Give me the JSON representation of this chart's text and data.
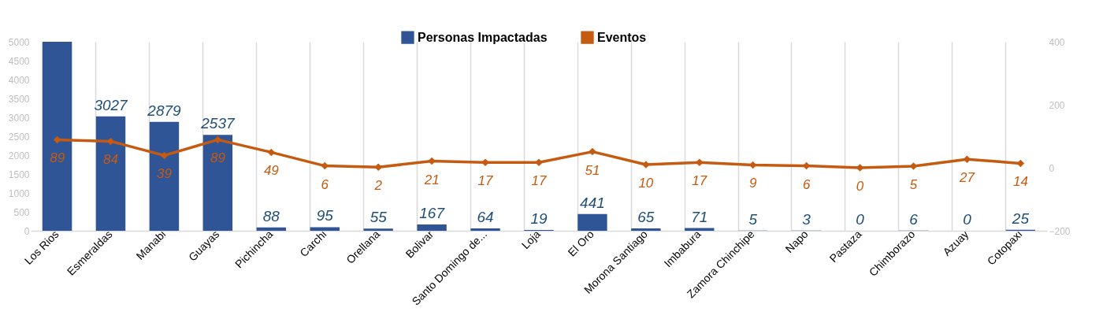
{
  "chart_data": {
    "type": "bar",
    "categories": [
      "Los Rios",
      "Esmeraldas",
      "Manabi",
      "Guayas",
      "Pichincha",
      "Carchi",
      "Orellana",
      "Bolivar",
      "Santo Domingo de...",
      "Loja",
      "El Oro",
      "Morona Santiago",
      "Imbabura",
      "Zamora Chinchipe",
      "Napo",
      "Pastaza",
      "Chimborazo",
      "Azuay",
      "Cotopaxi"
    ],
    "series": [
      {
        "name": "Personas Impactadas",
        "color": "#2f5597",
        "values": [
          5000,
          3027,
          2879,
          2537,
          88,
          95,
          55,
          167,
          64,
          19,
          441,
          65,
          71,
          5,
          3,
          0,
          6,
          0,
          25
        ],
        "value_labels": [
          null,
          "3027",
          "2879",
          "2537",
          "88",
          "95",
          "55",
          "167",
          "64",
          "19",
          "441",
          "65",
          "71",
          "5",
          "3",
          "0",
          "6",
          "0",
          "25"
        ]
      },
      {
        "name": "Eventos",
        "type": "line",
        "axis": "y2",
        "color": "#c55a11",
        "values": [
          89,
          84,
          39,
          89,
          49,
          6,
          2,
          21,
          17,
          17,
          51,
          10,
          17,
          9,
          6,
          0,
          5,
          27,
          14
        ],
        "value_labels": [
          "89",
          "84",
          "39",
          "89",
          "49",
          "6",
          "2",
          "21",
          "17",
          "17",
          "51",
          "10",
          "17",
          "9",
          "6",
          "0",
          "5",
          "27",
          "14"
        ]
      }
    ],
    "ylim": [
      0,
      5000
    ],
    "yticks": [
      0,
      500,
      1000,
      1500,
      2000,
      2500,
      3000,
      3500,
      4000,
      4500,
      5000
    ],
    "y2lim": [
      -200,
      400
    ],
    "y2ticks": [
      -200,
      0,
      200,
      400
    ],
    "grid": "x",
    "legend": "top",
    "marker": "diamond"
  }
}
